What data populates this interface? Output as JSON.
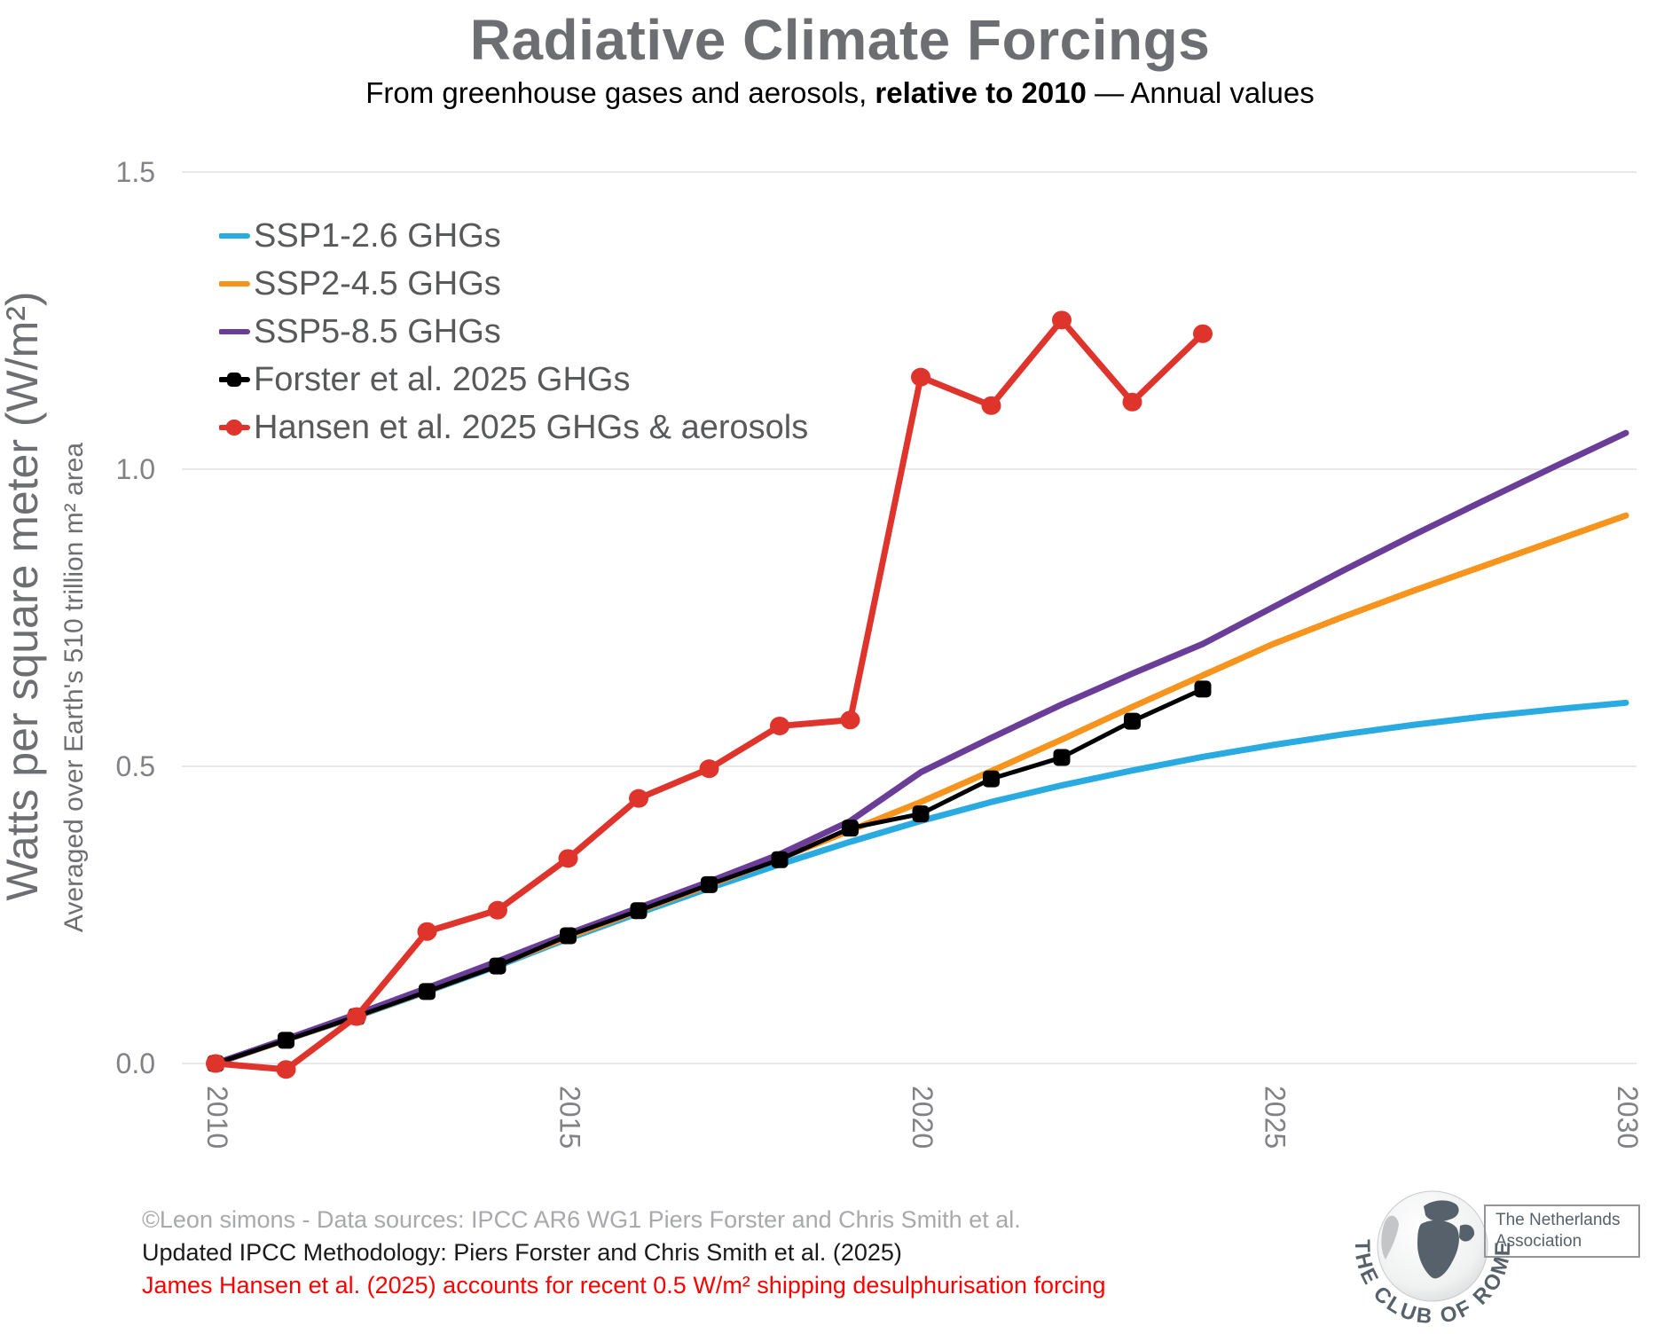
{
  "header": {
    "title": "Radiative Climate Forcings",
    "subtitle_prefix": "From greenhouse gases and aerosols, ",
    "subtitle_bold": "relative to 2010",
    "subtitle_suffix": " — Annual values"
  },
  "y_axis": {
    "label_main": "Watts per square meter (W/m²)",
    "label_sub": "Averaged over Earth's 510 trillion m² area"
  },
  "footer": {
    "line1": "©Leon simons - Data sources: IPCC AR6 WG1 Piers Forster and Chris Smith et al.",
    "line2": "Updated IPCC Methodology: Piers Forster and Chris Smith et al. (2025)",
    "line3": "James Hansen et al. (2025) accounts for recent 0.5 W/m² shipping desulphurisation forcing"
  },
  "logo": {
    "arc_text": "THE CLUB OF ROME",
    "box_line1": "The Netherlands",
    "box_line2": "Association"
  },
  "colors": {
    "title": "#6d6e71",
    "axis_label": "#6d6e71",
    "tick": "#808285",
    "grid": "#e8e8e8",
    "legend_text": "#58595b",
    "footer_gray": "#a7a9ac",
    "footer_red": "#ff0000",
    "logo_slate": "#57616c",
    "logo_light": "#c3c5c7"
  },
  "chart_data": {
    "type": "line",
    "title": "Radiative Climate Forcings",
    "xlabel": "",
    "ylabel": "Watts per square meter (W/m²)",
    "xlim": [
      2010,
      2030
    ],
    "ylim": [
      0,
      1.5
    ],
    "grid": "horizontal",
    "legend_position": "top-left",
    "x": [
      2010,
      2011,
      2012,
      2013,
      2014,
      2015,
      2016,
      2017,
      2018,
      2019,
      2020,
      2021,
      2022,
      2023,
      2024,
      2025,
      2026,
      2027,
      2028,
      2029,
      2030
    ],
    "xticks": [
      2010,
      2015,
      2020,
      2025,
      2030
    ],
    "xtick_labels": [
      "2010",
      "2015",
      "2020",
      "2025",
      "2030"
    ],
    "yticks": [
      0,
      0.5,
      1.0,
      1.5
    ],
    "ytick_labels": [
      "0.0",
      "0.5",
      "1.0",
      "1.5"
    ],
    "series": [
      {
        "name": "SSP1-2.6 GHGs",
        "color": "#29abe2",
        "marker": "none",
        "width": 7,
        "values": [
          0,
          0.04,
          0.079,
          0.121,
          0.164,
          0.21,
          0.253,
          0.295,
          0.335,
          0.373,
          0.408,
          0.44,
          0.468,
          0.493,
          0.516,
          0.536,
          0.554,
          0.57,
          0.584,
          0.596,
          0.607
        ]
      },
      {
        "name": "SSP2-4.5 GHGs",
        "color": "#f7941d",
        "marker": "none",
        "width": 7,
        "values": [
          0,
          0.04,
          0.08,
          0.122,
          0.166,
          0.213,
          0.257,
          0.3,
          0.345,
          0.392,
          0.44,
          0.492,
          0.545,
          0.6,
          0.653,
          0.706,
          0.752,
          0.796,
          0.838,
          0.88,
          0.922
        ]
      },
      {
        "name": "SSP5-8.5 GHGs",
        "color": "#6a3d98",
        "marker": "none",
        "width": 7,
        "values": [
          0,
          0.041,
          0.083,
          0.127,
          0.172,
          0.218,
          0.262,
          0.306,
          0.352,
          0.408,
          0.49,
          0.548,
          0.604,
          0.656,
          0.706,
          0.768,
          0.83,
          0.89,
          0.948,
          1.005,
          1.061
        ]
      },
      {
        "name": "Forster et al. 2025 GHGs",
        "color": "#000000",
        "marker": "square",
        "width": 5,
        "values": [
          0,
          0.039,
          0.079,
          0.121,
          0.164,
          0.215,
          0.257,
          0.301,
          0.343,
          0.396,
          0.42,
          0.479,
          0.515,
          0.576,
          0.63,
          null,
          null,
          null,
          null,
          null,
          null
        ]
      },
      {
        "name": "Hansen et al. 2025 GHGs & aerosols",
        "color": "#df342b",
        "marker": "circle",
        "width": 7,
        "values": [
          0,
          -0.01,
          0.079,
          0.222,
          0.258,
          0.345,
          0.446,
          0.496,
          0.568,
          0.578,
          1.155,
          1.107,
          1.251,
          1.113,
          1.228,
          null,
          null,
          null,
          null,
          null,
          null
        ]
      }
    ]
  }
}
